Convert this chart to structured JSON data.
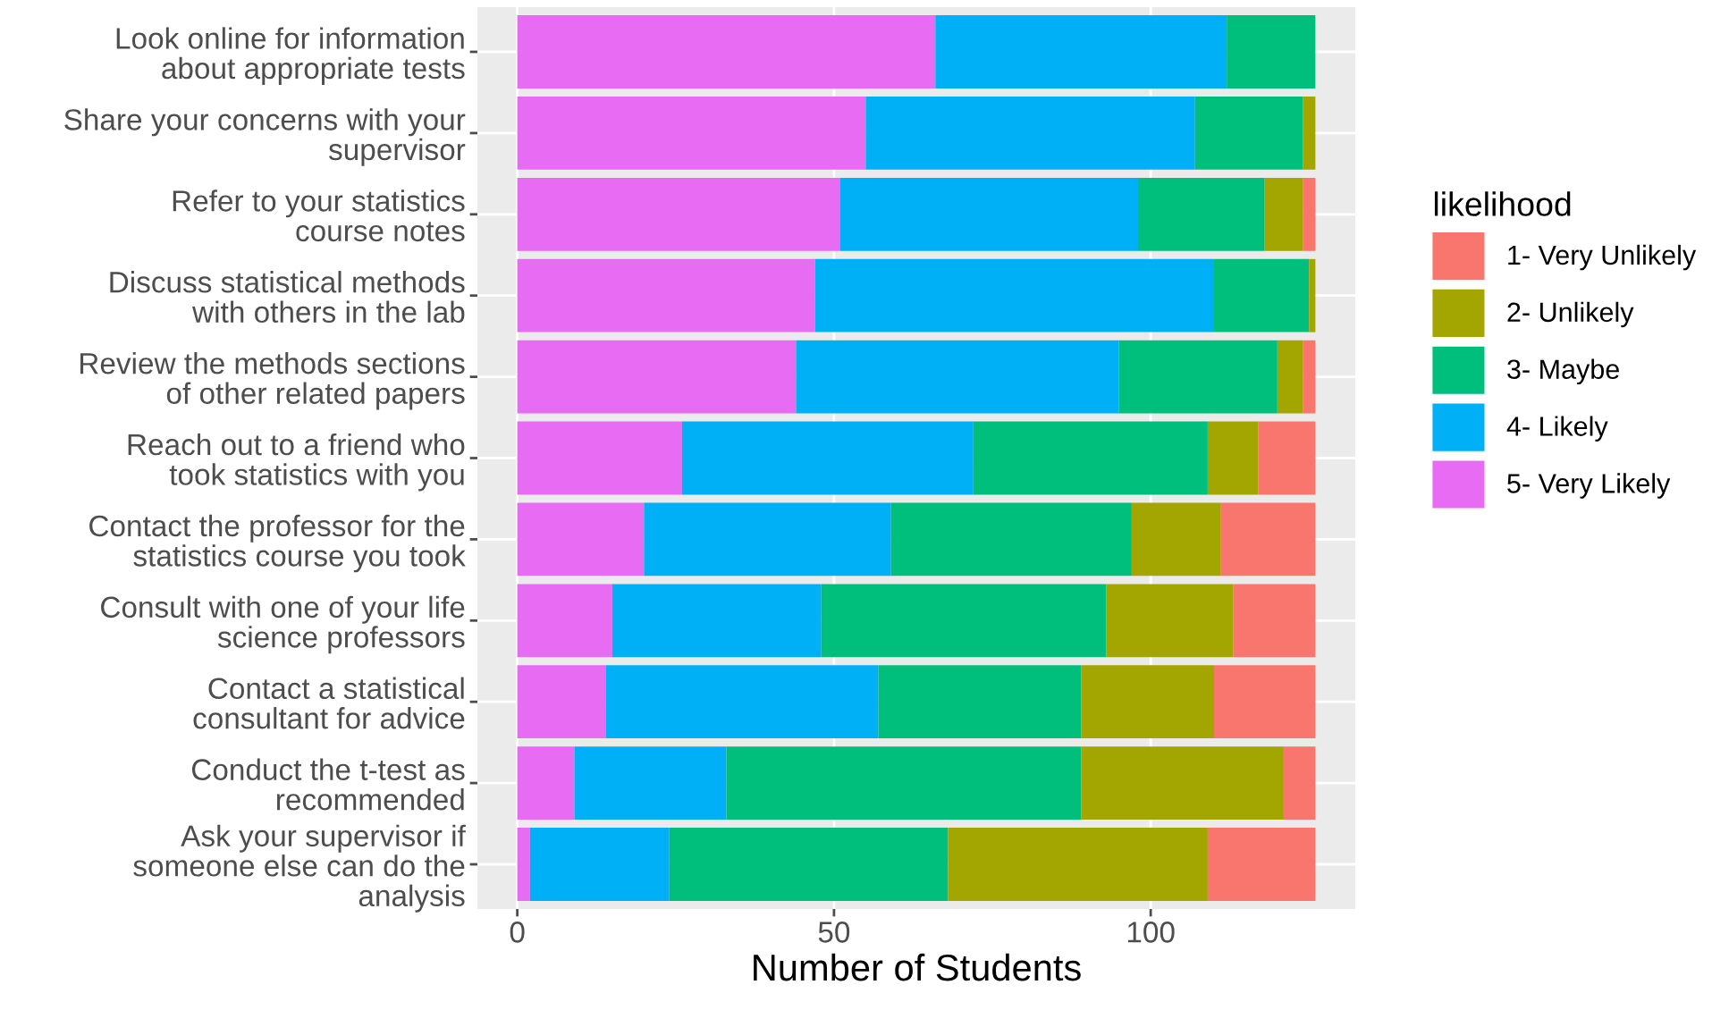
{
  "chart_data": {
    "type": "bar",
    "orientation": "horizontal",
    "stacked": true,
    "categories": [
      "Look online for information\nabout appropriate tests",
      "Share your concerns with your\nsupervisor",
      "Refer to your statistics\ncourse notes",
      "Discuss statistical methods\nwith others in the lab",
      "Review the methods sections\nof other related papers",
      "Reach out to a friend who\ntook statistics with you",
      "Contact the professor for the\nstatistics course you took",
      "Consult with one of your life\nscience professors",
      "Contact a statistical\nconsultant for advice",
      "Conduct the t-test as\nrecommended",
      "Ask your supervisor if\nsomeone else can do the\nanalysis"
    ],
    "series": [
      {
        "name": "5- Very Likely",
        "color": "#e76bf3",
        "values": [
          66,
          55,
          51,
          47,
          44,
          26,
          20,
          15,
          14,
          9,
          2
        ]
      },
      {
        "name": "4- Likely",
        "color": "#00b0f6",
        "values": [
          46,
          52,
          47,
          63,
          51,
          46,
          39,
          33,
          43,
          24,
          22
        ]
      },
      {
        "name": "3- Maybe",
        "color": "#00bf7d",
        "values": [
          14,
          17,
          20,
          15,
          25,
          37,
          38,
          45,
          32,
          56,
          44
        ]
      },
      {
        "name": "2- Unlikely",
        "color": "#a3a500",
        "values": [
          0,
          2,
          6,
          1,
          4,
          8,
          14,
          20,
          21,
          32,
          41
        ]
      },
      {
        "name": "1- Very Unlikely",
        "color": "#f8766d",
        "values": [
          0,
          0,
          2,
          0,
          2,
          9,
          15,
          13,
          16,
          5,
          17
        ]
      }
    ],
    "xlabel": "Number of Students",
    "legend_title": "likelihood",
    "xlim": [
      -6.3,
      132.3
    ],
    "xticks": [
      0,
      50,
      100
    ],
    "grid": true,
    "legend": "right"
  }
}
